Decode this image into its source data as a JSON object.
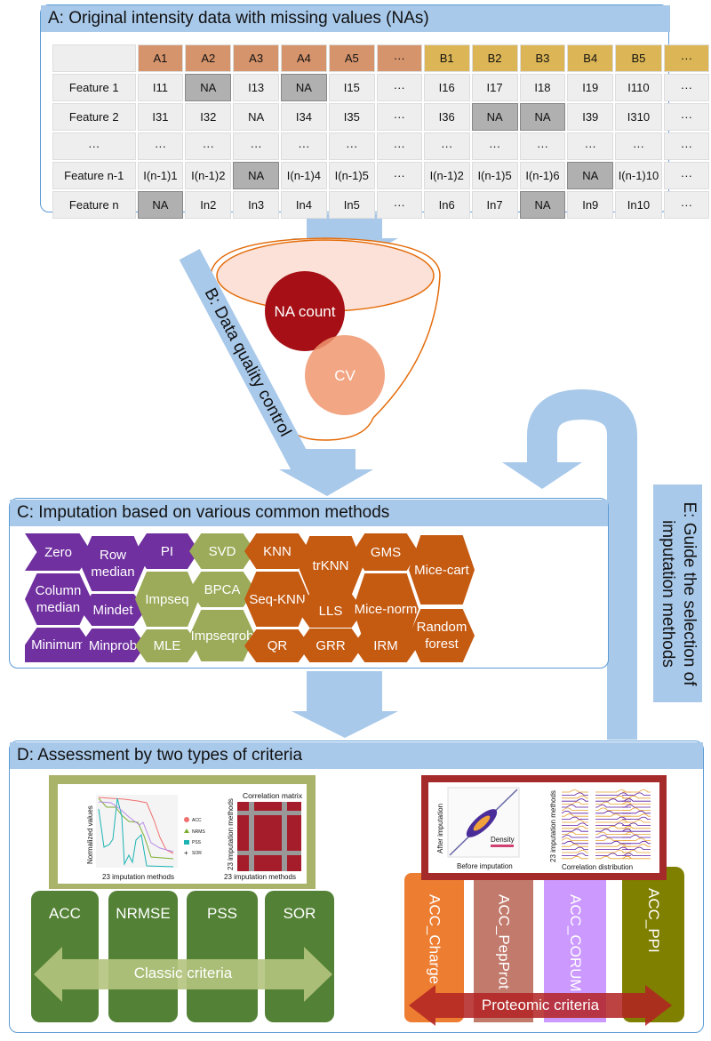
{
  "panel_a": {
    "title": "A: Original intensity data with missing values (NAs)",
    "columns": [
      "A1",
      "A2",
      "A3",
      "A4",
      "A5",
      "···",
      "B1",
      "B2",
      "B3",
      "B4",
      "B5",
      "···"
    ],
    "rows": [
      {
        "label": "Feature 1",
        "cells": [
          "I11",
          "NA",
          "I13",
          "NA",
          "I15",
          "···",
          "I16",
          "I17",
          "I18",
          "I19",
          "I110",
          "···"
        ]
      },
      {
        "label": "Feature 2",
        "cells": [
          "I31",
          "I32",
          "NA",
          "I34",
          "I35",
          "···",
          "I36",
          "NA",
          "NA",
          "I39",
          "I310",
          "···"
        ]
      },
      {
        "label": "···",
        "cells": [
          "···",
          "···",
          "···",
          "···",
          "···",
          "···",
          "···",
          "···",
          "···",
          "···",
          "···",
          "···"
        ]
      },
      {
        "label": "Feature n-1",
        "cells": [
          "I(n-1)1",
          "I(n-1)2",
          "NA",
          "I(n-1)4",
          "I(n-1)5",
          "···",
          "I(n-1)2",
          "I(n-1)5",
          "I(n-1)6",
          "NA",
          "I(n-1)10",
          "···"
        ]
      },
      {
        "label": "Feature n",
        "cells": [
          "NA",
          "In2",
          "In3",
          "In4",
          "In5",
          "···",
          "In6",
          "In7",
          "NA",
          "In9",
          "In10",
          "···"
        ]
      }
    ],
    "na_boxed": [
      [
        0,
        1
      ],
      [
        0,
        3
      ],
      [
        1,
        7
      ],
      [
        1,
        8
      ],
      [
        3,
        2
      ],
      [
        3,
        9
      ],
      [
        4,
        0
      ],
      [
        4,
        8
      ]
    ]
  },
  "panel_b": {
    "title": "B: Data quality control",
    "na_count": "NA count",
    "cv": "CV"
  },
  "panel_c": {
    "title": "C: Imputation based on various common methods",
    "methods": [
      "Zero",
      "Row median",
      "PI",
      "SVD",
      "KNN",
      "trKNN",
      "GMS",
      "Mice-cart",
      "Column median",
      "Mindet",
      "Impseq",
      "BPCA",
      "Seq-KNN",
      "LLS",
      "Mice-norm",
      "Random forest",
      "Minimum",
      "Minprob",
      "MLE",
      "Impseqrob",
      "QR",
      "GRR",
      "IRM"
    ]
  },
  "panel_d": {
    "title": "D: Assessment by two types of criteria",
    "classic": {
      "columns": [
        "ACC",
        "NRMSE",
        "PSS",
        "SOR"
      ],
      "arrow_label": "Classic criteria",
      "chart1": {
        "ylabel": "Normalized values",
        "xlabel": "23 imputation methods",
        "legend": [
          "ACC",
          "NRMS",
          "PSS",
          "SOR"
        ]
      },
      "chart2": {
        "title": "Correlation matrix",
        "ylabel": "23 imputation methods",
        "xlabel": "23 imputation methods"
      }
    },
    "proteomic": {
      "columns": [
        "ACC_Charge",
        "ACC_PepProt",
        "ACC_CORUM",
        "ACC_PPI"
      ],
      "arrow_label": "Proteomic criteria",
      "chart1": {
        "ylabel": "After imputation",
        "xlabel": "Before imputation",
        "legend": "Density"
      },
      "chart2": {
        "ylabel": "23 imputation methods",
        "xlabel": "Correlation distribution"
      }
    }
  },
  "panel_e": {
    "title": "E: Guide the selection of imputation methods"
  },
  "colors": {
    "statistical": "#7030a0",
    "global": "#9cab59",
    "local": "#c55a11",
    "classic": "#538135",
    "arrow_blue": "#a9c9ea"
  }
}
